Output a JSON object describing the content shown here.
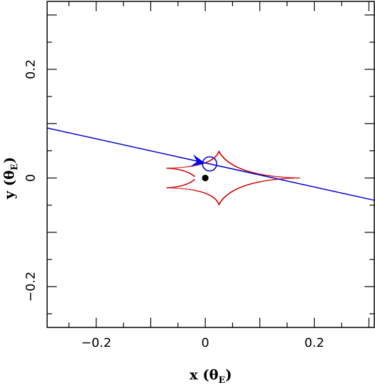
{
  "chart_data": {
    "type": "scatter",
    "xlabel": "x (θ_E)",
    "ylabel": "y (θ_E)",
    "xlim": [
      -0.29,
      0.31
    ],
    "ylim": [
      -0.275,
      0.325
    ],
    "x_ticks": [
      {
        "value": -0.2,
        "label": "−0.2"
      },
      {
        "value": 0,
        "label": "0"
      },
      {
        "value": 0.2,
        "label": "0.2"
      }
    ],
    "y_ticks": [
      {
        "value": -0.2,
        "label": "−0.2"
      },
      {
        "value": 0,
        "label": "0"
      },
      {
        "value": 0.2,
        "label": "0.2"
      }
    ],
    "grid": false,
    "source_trajectory": {
      "color": "#0000cc",
      "points": [
        [
          -0.29,
          0.092
        ],
        [
          0.31,
          -0.041
        ]
      ]
    },
    "arrow": {
      "color": "#0000ee",
      "tip": [
        0.0,
        0.027
      ],
      "from": [
        -0.028,
        0.033
      ]
    },
    "source_circle": {
      "color": "#0000cc",
      "center": [
        0.008,
        0.026
      ],
      "radius": 0.013
    },
    "lens": {
      "color": "#000000",
      "center": [
        0.0,
        0.0
      ],
      "marker_radius": 0.006
    },
    "caustic": {
      "color": "#cc0000",
      "cusps": {
        "top": [
          0.025,
          0.049
        ],
        "bottom": [
          0.025,
          -0.049
        ],
        "left_upper": [
          -0.07,
          0.018
        ],
        "left_lower": [
          -0.07,
          -0.018
        ],
        "right": [
          0.172,
          0.0
        ]
      }
    }
  }
}
